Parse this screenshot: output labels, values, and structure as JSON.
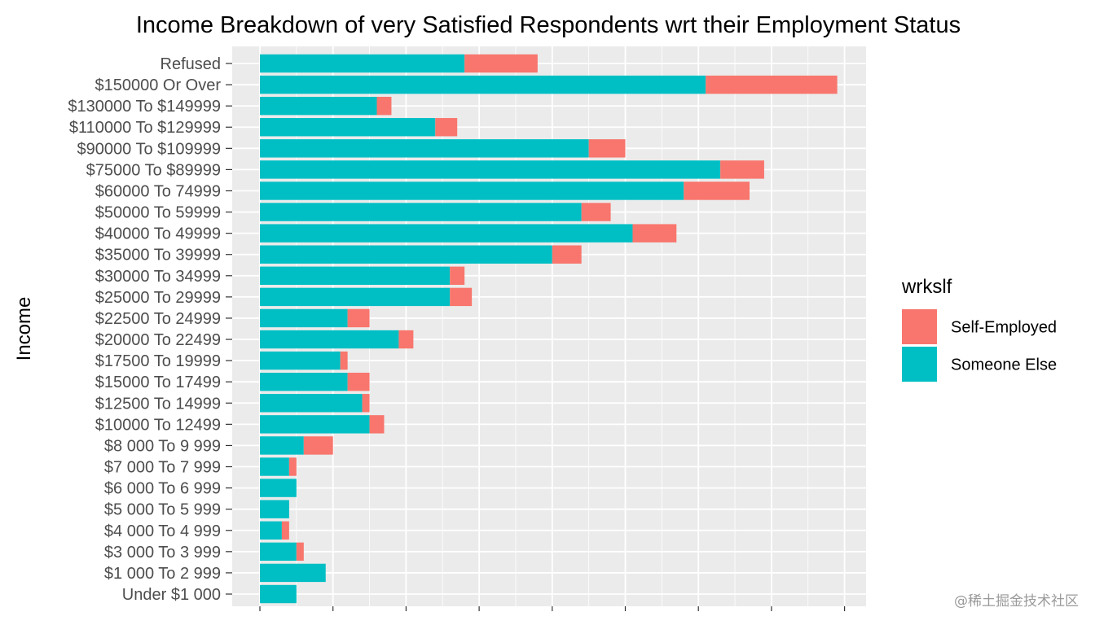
{
  "chart_data": {
    "type": "bar",
    "orientation": "horizontal",
    "stacked": true,
    "title": "Income Breakdown of very Satisfied Respondents wrt their Employment Status",
    "xlabel": "",
    "ylabel": "Income",
    "xlim": [
      0,
      83
    ],
    "x_tick_values": [
      0,
      10,
      20,
      30,
      40,
      50,
      60,
      70,
      80
    ],
    "x_tick_labels_visible": false,
    "legend_title": "wrkslf",
    "legend_position": "right",
    "categories": [
      "Refused",
      "$150000 Or Over",
      "$130000 To $149999",
      "$110000 To $129999",
      "$90000 To $109999",
      "$75000 To $89999",
      "$60000 To 74999",
      "$50000 To 59999",
      "$40000 To 49999",
      "$35000 To 39999",
      "$30000 To 34999",
      "$25000 To 29999",
      "$22500 To 24999",
      "$20000 To 22499",
      "$17500 To 19999",
      "$15000 To 17499",
      "$12500 To 14999",
      "$10000 To 12499",
      "$8 000 To 9 999",
      "$7 000 To 7 999",
      "$6 000 To 6 999",
      "$5 000 To 5 999",
      "$4 000 To 4 999",
      "$3 000 To 3 999",
      "$1 000 To 2 999",
      "Under $1 000"
    ],
    "series": [
      {
        "name": "Someone Else",
        "color": "#00BFC4",
        "values": [
          28,
          61,
          16,
          24,
          45,
          63,
          58,
          44,
          51,
          40,
          26,
          26,
          12,
          19,
          11,
          12,
          14,
          15,
          6,
          4,
          5,
          4,
          3,
          5,
          9,
          5
        ]
      },
      {
        "name": "Self-Employed",
        "color": "#F8766D",
        "values": [
          10,
          18,
          2,
          3,
          5,
          6,
          9,
          4,
          6,
          4,
          2,
          3,
          3,
          2,
          1,
          3,
          1,
          2,
          4,
          1,
          0,
          0,
          1,
          1,
          0,
          0
        ]
      }
    ],
    "legend_order": [
      "Self-Employed",
      "Someone Else"
    ]
  },
  "watermark": "@稀土掘金技术社区",
  "colors": {
    "panel_background": "#EBEBEB",
    "grid_major": "#FFFFFF",
    "tick_mark": "#333333"
  }
}
